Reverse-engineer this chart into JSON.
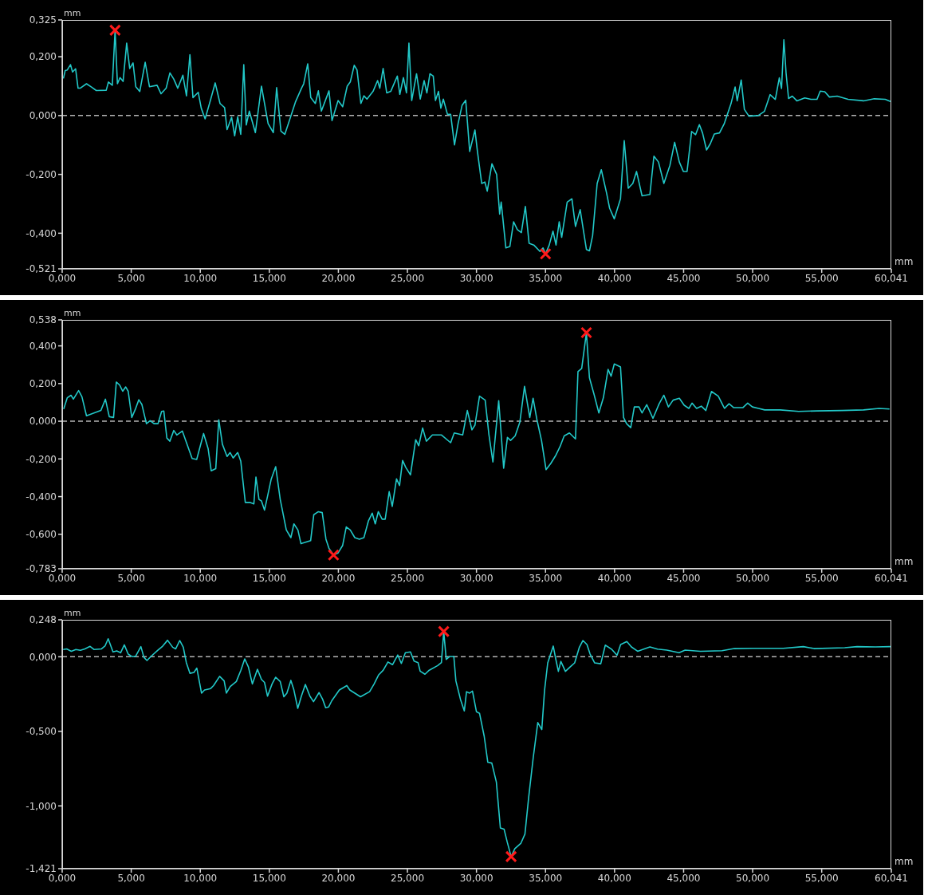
{
  "chart_data": [
    {
      "type": "line",
      "xlabel": "mm",
      "ylabel": "mm",
      "xlim": [
        0,
        60.041
      ],
      "ylim": [
        -0.521,
        0.325
      ],
      "xticks": [
        {
          "value": 0,
          "label": "0,000"
        },
        {
          "value": 5,
          "label": "5,000"
        },
        {
          "value": 10,
          "label": "10,000"
        },
        {
          "value": 15,
          "label": "15,000"
        },
        {
          "value": 20,
          "label": "20,000"
        },
        {
          "value": 25,
          "label": "25,000"
        },
        {
          "value": 30,
          "label": "30,000"
        },
        {
          "value": 35,
          "label": "35,000"
        },
        {
          "value": 40,
          "label": "40,000"
        },
        {
          "value": 45,
          "label": "45,000"
        },
        {
          "value": 50,
          "label": "50,000"
        },
        {
          "value": 55,
          "label": "55,000"
        },
        {
          "value": 60.041,
          "label": "60,041"
        }
      ],
      "yticks": [
        {
          "value": 0.325,
          "label": "0,325"
        },
        {
          "value": 0.2,
          "label": "0,200"
        },
        {
          "value": 0,
          "label": "0,000"
        },
        {
          "value": -0.2,
          "label": "-0,200"
        },
        {
          "value": -0.4,
          "label": "-0,400"
        },
        {
          "value": -0.521,
          "label": "-0,521"
        }
      ],
      "ref_lines": [
        {
          "axis": "y",
          "value": 0,
          "color": "#b4b4b4",
          "line_style": "dashed"
        }
      ],
      "series": [
        {
          "color": "#22c8c8",
          "marker": "none",
          "x": [
            0.09,
            0.22,
            0.37,
            0.6,
            0.75,
            0.97,
            1.15,
            1.3,
            1.76,
            2.14,
            2.47,
            3.19,
            3.35,
            3.63,
            3.83,
            4.0,
            4.19,
            4.41,
            4.67,
            4.89,
            5.13,
            5.33,
            5.62,
            6.01,
            6.32,
            6.87,
            7.16,
            7.53,
            7.8,
            8.08,
            8.37,
            8.74,
            9.0,
            9.25,
            9.47,
            9.85,
            10.07,
            10.35,
            10.73,
            11.08,
            11.43,
            11.76,
            11.94,
            12.27,
            12.49,
            12.71,
            12.93,
            13.15,
            13.33,
            13.55,
            13.99,
            14.43,
            14.91,
            15.29,
            15.53,
            15.84,
            16.12,
            16.45,
            16.89,
            17.33,
            17.49,
            17.78,
            18.0,
            18.33,
            18.55,
            18.77,
            19.32,
            19.54,
            19.98,
            20.31,
            20.64,
            20.86,
            21.15,
            21.35,
            21.63,
            21.85,
            22.07,
            22.51,
            22.84,
            23.0,
            23.24,
            23.5,
            23.79,
            24.27,
            24.45,
            24.71,
            24.93,
            25.11,
            25.31,
            25.66,
            25.93,
            26.21,
            26.41,
            26.63,
            26.87,
            27.03,
            27.25,
            27.42,
            27.6,
            27.9,
            28.13,
            28.41,
            28.67,
            28.96,
            29.22,
            29.51,
            29.89,
            30.07,
            30.38,
            30.61,
            30.78,
            31.12,
            31.46,
            31.68,
            31.79,
            32.13,
            32.42,
            32.69,
            32.96,
            33.25,
            33.54,
            33.81,
            34.15,
            34.6,
            34.82,
            35.0,
            35.27,
            35.54,
            35.76,
            35.99,
            36.17,
            36.57,
            36.91,
            37.17,
            37.51,
            37.96,
            38.18,
            38.41,
            38.74,
            39.04,
            39.42,
            39.64,
            39.98,
            40.43,
            40.7,
            40.99,
            41.32,
            41.59,
            41.99,
            42.56,
            42.85,
            43.18,
            43.57,
            44.01,
            44.35,
            44.69,
            44.98,
            45.25,
            45.58,
            45.87,
            46.14,
            46.37,
            46.66,
            46.93,
            47.22,
            47.6,
            47.94,
            48.21,
            48.43,
            48.73,
            48.88,
            49.17,
            49.4,
            49.73,
            50.4,
            50.85,
            51.26,
            51.64,
            51.93,
            52.09,
            52.26,
            52.42,
            52.6,
            52.87,
            53.2,
            53.77,
            54.22,
            54.66,
            54.89,
            55.22,
            55.56,
            56.12,
            56.91,
            58.03,
            58.81,
            59.6,
            59.98
          ],
          "values": [
            0.126,
            0.153,
            0.155,
            0.173,
            0.148,
            0.159,
            0.093,
            0.093,
            0.108,
            0.096,
            0.085,
            0.086,
            0.114,
            0.103,
            0.29,
            0.108,
            0.129,
            0.116,
            0.246,
            0.16,
            0.179,
            0.098,
            0.082,
            0.181,
            0.098,
            0.103,
            0.074,
            0.093,
            0.145,
            0.124,
            0.093,
            0.137,
            0.067,
            0.207,
            0.061,
            0.079,
            0.025,
            -0.011,
            0.051,
            0.111,
            0.041,
            0.027,
            -0.048,
            -0.006,
            -0.069,
            -0.004,
            -0.064,
            0.173,
            -0.032,
            0.015,
            -0.058,
            0.1,
            -0.027,
            -0.058,
            0.095,
            -0.053,
            -0.064,
            -0.017,
            0.046,
            0.093,
            0.108,
            0.176,
            0.061,
            0.041,
            0.084,
            0.015,
            0.084,
            -0.017,
            0.051,
            0.03,
            0.1,
            0.114,
            0.171,
            0.155,
            0.041,
            0.067,
            0.056,
            0.082,
            0.119,
            0.093,
            0.16,
            0.077,
            0.082,
            0.134,
            0.072,
            0.129,
            0.077,
            0.246,
            0.051,
            0.142,
            0.056,
            0.119,
            0.077,
            0.142,
            0.134,
            0.051,
            0.082,
            0.025,
            0.056,
            0.004,
            0.004,
            -0.1,
            -0.027,
            0.035,
            0.052,
            -0.122,
            -0.049,
            -0.122,
            -0.231,
            -0.226,
            -0.257,
            -0.164,
            -0.2,
            -0.335,
            -0.294,
            -0.45,
            -0.445,
            -0.361,
            -0.388,
            -0.398,
            -0.309,
            -0.434,
            -0.44,
            -0.462,
            -0.45,
            -0.47,
            -0.44,
            -0.393,
            -0.44,
            -0.361,
            -0.414,
            -0.294,
            -0.283,
            -0.377,
            -0.32,
            -0.455,
            -0.46,
            -0.408,
            -0.231,
            -0.184,
            -0.263,
            -0.315,
            -0.351,
            -0.283,
            -0.085,
            -0.247,
            -0.231,
            -0.19,
            -0.273,
            -0.268,
            -0.138,
            -0.158,
            -0.231,
            -0.169,
            -0.091,
            -0.158,
            -0.19,
            -0.19,
            -0.054,
            -0.065,
            -0.031,
            -0.059,
            -0.117,
            -0.096,
            -0.063,
            -0.059,
            -0.028,
            0.01,
            0.04,
            0.097,
            0.05,
            0.121,
            0.021,
            -0.002,
            0,
            0.014,
            0.071,
            0.055,
            0.128,
            0.092,
            0.258,
            0.144,
            0.058,
            0.066,
            0.05,
            0.06,
            0.055,
            0.055,
            0.083,
            0.081,
            0.063,
            0.066,
            0.055,
            0.05,
            0.057,
            0.055,
            0.048
          ]
        },
        {
          "type": "scatter",
          "color": "#ff1a1a",
          "marker": "cross",
          "x": [
            3.83,
            35.0
          ],
          "values": [
            0.29,
            -0.47
          ]
        }
      ]
    },
    {
      "type": "line",
      "xlabel": "mm",
      "ylabel": "mm",
      "xlim": [
        0,
        60.041
      ],
      "ylim": [
        -0.783,
        0.538
      ],
      "xticks": [
        {
          "value": 0,
          "label": "0,000"
        },
        {
          "value": 5,
          "label": "5,000"
        },
        {
          "value": 10,
          "label": "10,000"
        },
        {
          "value": 15,
          "label": "15,000"
        },
        {
          "value": 20,
          "label": "20,000"
        },
        {
          "value": 25,
          "label": "25,000"
        },
        {
          "value": 30,
          "label": "30,000"
        },
        {
          "value": 35,
          "label": "35,000"
        },
        {
          "value": 40,
          "label": "40,000"
        },
        {
          "value": 45,
          "label": "45,000"
        },
        {
          "value": 50,
          "label": "50,000"
        },
        {
          "value": 55,
          "label": "55,000"
        },
        {
          "value": 60.041,
          "label": "60,041"
        }
      ],
      "yticks": [
        {
          "value": 0.538,
          "label": "0,538"
        },
        {
          "value": 0.4,
          "label": "0,400"
        },
        {
          "value": 0.2,
          "label": "0,200"
        },
        {
          "value": 0,
          "label": "0,000"
        },
        {
          "value": -0.2,
          "label": "-0,200"
        },
        {
          "value": -0.4,
          "label": "-0,400"
        },
        {
          "value": -0.6,
          "label": "-0,600"
        },
        {
          "value": -0.783,
          "label": "-0,783"
        }
      ],
      "ref_lines": [
        {
          "axis": "y",
          "value": 0,
          "color": "#b4b4b4",
          "line_style": "dashed"
        }
      ],
      "series": [
        {
          "color": "#22c8c8",
          "marker": "none",
          "x": [
            0.11,
            0.37,
            0.64,
            0.81,
            1.19,
            1.43,
            1.76,
            2.8,
            3.13,
            3.41,
            3.72,
            3.92,
            4.16,
            4.38,
            4.6,
            4.78,
            5.04,
            5.29,
            5.55,
            5.77,
            6.1,
            6.37,
            6.65,
            6.94,
            7.2,
            7.36,
            7.58,
            7.8,
            8.08,
            8.3,
            8.7,
            8.96,
            9.41,
            9.74,
            10.24,
            10.57,
            10.79,
            11.12,
            11.34,
            11.6,
            11.94,
            12.16,
            12.38,
            12.71,
            12.93,
            13.26,
            13.59,
            13.88,
            14.03,
            14.25,
            14.43,
            14.65,
            14.87,
            15.13,
            15.46,
            15.79,
            16.23,
            16.56,
            16.78,
            17.07,
            17.29,
            17.99,
            18.22,
            18.55,
            18.83,
            19.1,
            19.32,
            19.65,
            19.98,
            20.31,
            20.57,
            20.86,
            21.19,
            21.52,
            21.85,
            22.18,
            22.45,
            22.67,
            22.89,
            23.17,
            23.39,
            23.68,
            23.9,
            24.21,
            24.43,
            24.65,
            24.87,
            25.22,
            25.6,
            25.82,
            26.1,
            26.37,
            26.81,
            27.47,
            28.13,
            28.39,
            29.0,
            29.34,
            29.67,
            29.89,
            30.22,
            30.63,
            30.9,
            31.19,
            31.61,
            31.97,
            32.24,
            32.47,
            32.8,
            33.14,
            33.48,
            33.86,
            34.1,
            34.37,
            34.71,
            35.04,
            35.38,
            35.72,
            36.05,
            36.35,
            36.73,
            37.17,
            37.35,
            37.62,
            37.96,
            38.18,
            38.52,
            38.86,
            39.19,
            39.53,
            39.75,
            39.98,
            40.43,
            40.65,
            40.87,
            41.17,
            41.43,
            41.77,
            41.99,
            42.33,
            42.78,
            43.23,
            43.57,
            43.9,
            44.24,
            44.69,
            45.04,
            45.38,
            45.61,
            45.94,
            46.28,
            46.61,
            47.02,
            47.51,
            47.96,
            48.29,
            48.63,
            49.3,
            49.64,
            49.98,
            50.43,
            50.87,
            51.99,
            53.33,
            54.66,
            56.46,
            58.03,
            59.15,
            59.91
          ],
          "values": [
            0.065,
            0.125,
            0.138,
            0.117,
            0.163,
            0.13,
            0.029,
            0.057,
            0.117,
            0.024,
            0.02,
            0.208,
            0.192,
            0.159,
            0.182,
            0.159,
            0.02,
            0.062,
            0.114,
            0.089,
            -0.013,
            0.003,
            -0.013,
            -0.013,
            0.052,
            0.054,
            -0.089,
            -0.106,
            -0.049,
            -0.073,
            -0.052,
            -0.106,
            -0.198,
            -0.203,
            -0.065,
            -0.146,
            -0.263,
            -0.252,
            0.008,
            -0.122,
            -0.187,
            -0.166,
            -0.195,
            -0.166,
            -0.211,
            -0.431,
            -0.431,
            -0.439,
            -0.296,
            -0.415,
            -0.423,
            -0.472,
            -0.398,
            -0.309,
            -0.241,
            -0.415,
            -0.577,
            -0.618,
            -0.545,
            -0.577,
            -0.65,
            -0.634,
            -0.496,
            -0.48,
            -0.485,
            -0.626,
            -0.675,
            -0.71,
            -0.699,
            -0.659,
            -0.561,
            -0.577,
            -0.618,
            -0.626,
            -0.618,
            -0.528,
            -0.488,
            -0.545,
            -0.48,
            -0.52,
            -0.52,
            -0.374,
            -0.452,
            -0.306,
            -0.341,
            -0.208,
            -0.244,
            -0.285,
            -0.098,
            -0.13,
            -0.036,
            -0.106,
            -0.073,
            -0.073,
            -0.114,
            -0.062,
            -0.073,
            0.057,
            -0.046,
            -0.021,
            0.133,
            0.112,
            -0.07,
            -0.216,
            0.109,
            -0.249,
            -0.086,
            -0.102,
            -0.078,
            -0.005,
            0.185,
            0.02,
            0.122,
            0.011,
            -0.102,
            -0.257,
            -0.224,
            -0.184,
            -0.135,
            -0.078,
            -0.062,
            -0.094,
            0.263,
            0.28,
            0.47,
            0.231,
            0.141,
            0.044,
            0.125,
            0.275,
            0.239,
            0.304,
            0.288,
            0.02,
            -0.013,
            -0.034,
            0.076,
            0.076,
            0.044,
            0.088,
            0.015,
            0.093,
            0.138,
            0.076,
            0.112,
            0.122,
            0.085,
            0.068,
            0.096,
            0.068,
            0.08,
            0.057,
            0.158,
            0.133,
            0.068,
            0.093,
            0.072,
            0.073,
            0.096,
            0.076,
            0.068,
            0.06,
            0.06,
            0.052,
            0.055,
            0.057,
            0.06,
            0.068,
            0.065
          ]
        },
        {
          "type": "scatter",
          "color": "#ff1a1a",
          "marker": "cross",
          "x": [
            19.65,
            37.96
          ],
          "values": [
            -0.71,
            0.47
          ]
        }
      ]
    },
    {
      "type": "line",
      "xlabel": "mm",
      "ylabel": "mm",
      "xlim": [
        0,
        60.041
      ],
      "ylim": [
        -1.421,
        0.248
      ],
      "xticks": [
        {
          "value": 0,
          "label": "0,000"
        },
        {
          "value": 5,
          "label": "5,000"
        },
        {
          "value": 10,
          "label": "10,000"
        },
        {
          "value": 15,
          "label": "15,000"
        },
        {
          "value": 20,
          "label": "20,000"
        },
        {
          "value": 25,
          "label": "25,000"
        },
        {
          "value": 30,
          "label": "30,000"
        },
        {
          "value": 35,
          "label": "35,000"
        },
        {
          "value": 40,
          "label": "40,000"
        },
        {
          "value": 45,
          "label": "45,000"
        },
        {
          "value": 50,
          "label": "50,000"
        },
        {
          "value": 55,
          "label": "55,000"
        },
        {
          "value": 60.041,
          "label": "60,041"
        }
      ],
      "yticks": [
        {
          "value": 0.248,
          "label": "0,248"
        },
        {
          "value": 0,
          "label": "0,000"
        },
        {
          "value": -0.5,
          "label": "-0,500"
        },
        {
          "value": -1,
          "label": "-1,000"
        },
        {
          "value": -1.421,
          "label": "-1,421"
        }
      ],
      "ref_lines": [
        {
          "axis": "y",
          "value": 0,
          "color": "#b4b4b4",
          "line_style": "dashed"
        }
      ],
      "series": [
        {
          "color": "#22c8c8",
          "marker": "none",
          "x": [
            0.07,
            0.33,
            0.66,
            0.99,
            1.32,
            1.64,
            2.02,
            2.3,
            2.85,
            3.11,
            3.33,
            3.68,
            3.95,
            4.23,
            4.5,
            4.78,
            5.04,
            5.31,
            5.7,
            5.92,
            6.14,
            6.47,
            6.91,
            7.24,
            7.63,
            8.0,
            8.22,
            8.51,
            8.77,
            8.99,
            9.25,
            9.54,
            9.75,
            10.09,
            10.31,
            10.75,
            10.96,
            11.4,
            11.73,
            11.89,
            12.17,
            12.61,
            12.94,
            13.22,
            13.49,
            13.77,
            14.14,
            14.43,
            14.65,
            14.87,
            15.2,
            15.46,
            15.79,
            16.05,
            16.27,
            16.56,
            16.78,
            17.06,
            17.32,
            17.61,
            17.94,
            18.2,
            18.6,
            18.86,
            19.08,
            19.3,
            19.52,
            20.07,
            20.61,
            20.83,
            21.6,
            22.26,
            22.59,
            22.92,
            23.25,
            23.59,
            23.92,
            24.3,
            24.56,
            24.85,
            25.22,
            25.48,
            25.77,
            25.92,
            26.27,
            26.58,
            27.19,
            27.46,
            27.63,
            27.81,
            28.07,
            28.36,
            28.51,
            28.84,
            29.12,
            29.28,
            29.5,
            29.71,
            30.0,
            30.22,
            30.56,
            30.82,
            31.11,
            31.44,
            31.73,
            32.0,
            32.22,
            32.51,
            32.78,
            33.22,
            33.51,
            33.78,
            34.11,
            34.44,
            34.73,
            34.93,
            35.16,
            35.56,
            35.73,
            35.93,
            36.11,
            36.44,
            36.78,
            37.11,
            37.44,
            37.71,
            38.0,
            38.22,
            38.56,
            39.0,
            39.33,
            39.78,
            40.18,
            40.44,
            40.89,
            41.22,
            41.67,
            42.11,
            42.56,
            43.11,
            43.78,
            44.67,
            45.11,
            46.22,
            47.78,
            48.67,
            50.0,
            52.22,
            53.67,
            54.44,
            56.67,
            57.56,
            58.89,
            59.98
          ],
          "values": [
            0.049,
            0.053,
            0.037,
            0.049,
            0.043,
            0.053,
            0.07,
            0.049,
            0.053,
            0.074,
            0.121,
            0.033,
            0.039,
            0.027,
            0.08,
            0.018,
            0.002,
            0.002,
            0.068,
            -0.004,
            -0.025,
            0.006,
            0.043,
            0.068,
            0.111,
            0.064,
            0.053,
            0.109,
            0.064,
            -0.039,
            -0.111,
            -0.105,
            -0.076,
            -0.244,
            -0.223,
            -0.213,
            -0.193,
            -0.131,
            -0.162,
            -0.244,
            -0.199,
            -0.166,
            -0.09,
            -0.014,
            -0.07,
            -0.182,
            -0.084,
            -0.152,
            -0.172,
            -0.264,
            -0.182,
            -0.137,
            -0.166,
            -0.268,
            -0.244,
            -0.158,
            -0.223,
            -0.346,
            -0.264,
            -0.186,
            -0.264,
            -0.301,
            -0.24,
            -0.285,
            -0.342,
            -0.336,
            -0.295,
            -0.223,
            -0.193,
            -0.223,
            -0.268,
            -0.234,
            -0.182,
            -0.121,
            -0.09,
            -0.035,
            -0.053,
            0.012,
            -0.045,
            0.027,
            0.033,
            -0.029,
            -0.039,
            -0.096,
            -0.117,
            -0.09,
            -0.059,
            -0.039,
            0.17,
            -0.018,
            0.002,
            0.002,
            -0.162,
            -0.285,
            -0.363,
            -0.234,
            -0.244,
            -0.23,
            -0.369,
            -0.379,
            -0.533,
            -0.707,
            -0.713,
            -0.84,
            -1.148,
            -1.156,
            -1.24,
            -1.34,
            -1.287,
            -1.25,
            -1.189,
            -0.943,
            -0.676,
            -0.441,
            -0.488,
            -0.225,
            -0.041,
            0.072,
            -0.01,
            -0.098,
            -0.031,
            -0.098,
            -0.068,
            -0.041,
            0.061,
            0.109,
            0.082,
            0.02,
            -0.041,
            -0.047,
            0.078,
            0.051,
            0.01,
            0.082,
            0.102,
            0.066,
            0.037,
            0.051,
            0.066,
            0.051,
            0.045,
            0.027,
            0.045,
            0.037,
            0.041,
            0.055,
            0.057,
            0.057,
            0.068,
            0.055,
            0.061,
            0.068,
            0.066,
            0.068
          ]
        },
        {
          "type": "scatter",
          "color": "#ff1a1a",
          "marker": "cross",
          "x": [
            27.63,
            32.51
          ],
          "values": [
            0.17,
            -1.34
          ]
        }
      ]
    }
  ]
}
